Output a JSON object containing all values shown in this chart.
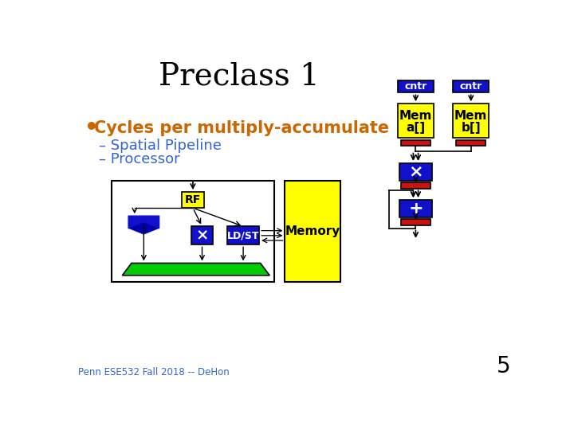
{
  "title": "Preclass 1",
  "title_fontsize": 28,
  "bullet_text": "Cycles per multiply-accumulate",
  "bullet_color": "#CC6600",
  "sub1": "– Spatial Pipeline",
  "sub2": "– Processor",
  "sub_color": "#3366CC",
  "footer": "Penn ESE532 Fall 2018 -- DeHon",
  "footer_color": "#3366CC",
  "page_num": "5",
  "bg_color": "#FFFFFF",
  "yellow": "#FFFF00",
  "blue": "#1111CC",
  "red": "#CC1111",
  "green": "#00CC00",
  "white": "#FFFFFF",
  "cntr_color": "#1111CC",
  "black": "#000000"
}
